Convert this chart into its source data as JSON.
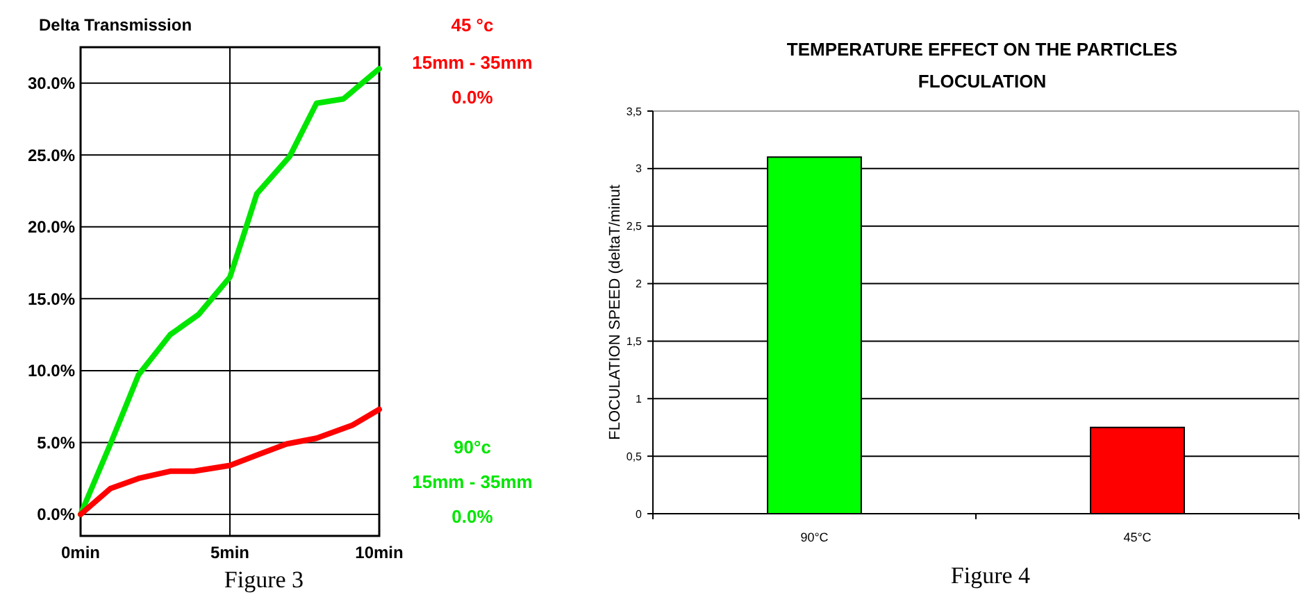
{
  "chart_data": [
    {
      "type": "line",
      "title": "Delta Transmission",
      "x": [
        0,
        1,
        1.94,
        3,
        3.95,
        5,
        5.5,
        5.9,
        7,
        7.9,
        8.8,
        10
      ],
      "xlim": [
        0,
        10
      ],
      "xticks": [
        {
          "value": 0,
          "label": "0min"
        },
        {
          "value": 5,
          "label": "5min"
        },
        {
          "value": 10,
          "label": "10min"
        }
      ],
      "ylim": [
        -1.5,
        32.5
      ],
      "yticks": [
        {
          "value": 0,
          "label": "0.0%"
        },
        {
          "value": 5,
          "label": "5.0%"
        },
        {
          "value": 10,
          "label": "10.0%"
        },
        {
          "value": 15,
          "label": "15.0%"
        },
        {
          "value": 20,
          "label": "20.0%"
        },
        {
          "value": 25,
          "label": "25.0%"
        },
        {
          "value": 30,
          "label": "30.0%"
        }
      ],
      "grid": true,
      "marker": "none",
      "line_style": "solid",
      "series": [
        {
          "name": "90°c",
          "color": "#00e600",
          "values": [
            0,
            4.9,
            9.7,
            12.5,
            13.9,
            16.5,
            19.7,
            22.3,
            24.9,
            28.6,
            28.9,
            31.0
          ]
        },
        {
          "name": "45 °c",
          "color": "#ff0000",
          "x": [
            0,
            1,
            1.94,
            3,
            3.8,
            5,
            6,
            6.9,
            7.9,
            9.1,
            10
          ],
          "values": [
            0,
            1.8,
            2.5,
            3.0,
            3.0,
            3.4,
            4.2,
            4.9,
            5.3,
            6.2,
            7.3
          ]
        }
      ],
      "annotations": [
        "15mm - 35mm",
        "0.0%",
        "15mm - 35mm",
        "0.0%",
        "Figure 3"
      ]
    },
    {
      "type": "bar",
      "title": "TEMPERATURE EFFECT ON THE PARTICLES FLOCULATION",
      "ylabel": "FLOCULATION SPEED (deltaT/minut",
      "categories": [
        "90°C",
        "45°C"
      ],
      "values": [
        3.1,
        0.75
      ],
      "colors": [
        "#00ff00",
        "#ff0000"
      ],
      "ylim": [
        0,
        3.5
      ],
      "yticks": [
        0,
        {
          "value": 0.5,
          "label": "0,5"
        },
        1,
        {
          "value": 1.5,
          "label": "1,5"
        },
        2,
        {
          "value": 2.5,
          "label": "2,5"
        },
        3,
        {
          "value": 3.5,
          "label": "3,5"
        }
      ],
      "grid": "y",
      "annotations": [
        "Figure 4"
      ]
    }
  ]
}
